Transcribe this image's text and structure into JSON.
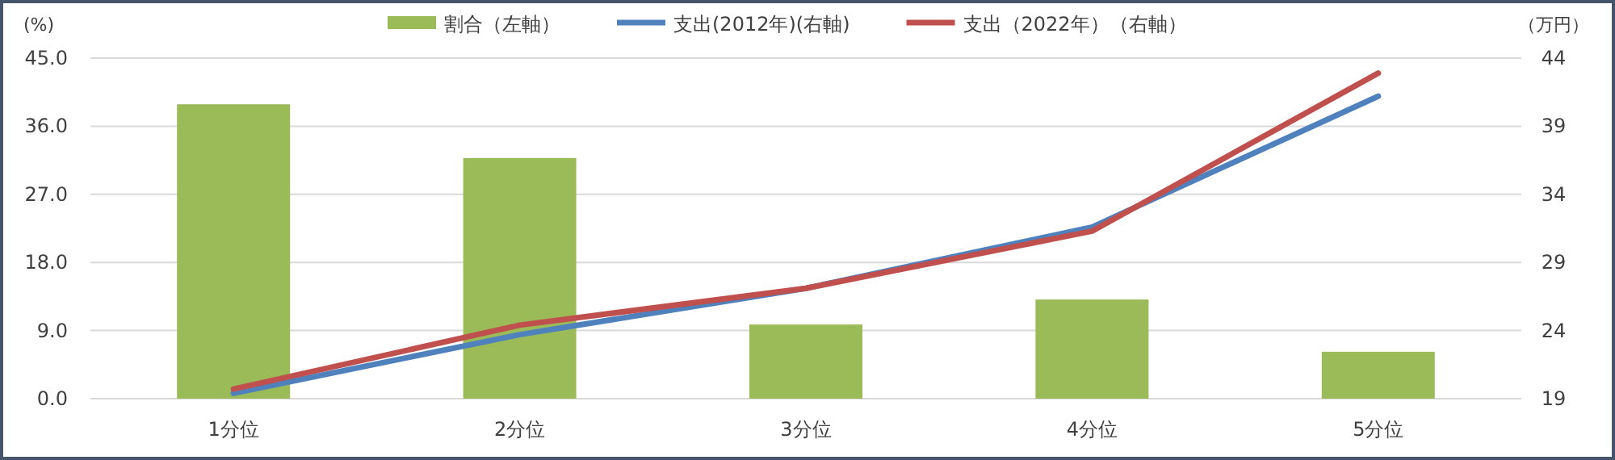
{
  "chart_data": {
    "type": "bar",
    "categories": [
      "1分位",
      "2分位",
      "3分位",
      "4分位",
      "5分位"
    ],
    "series": [
      {
        "name": "割合（左軸）",
        "color": "#9bbb59",
        "values": [
          38.9,
          31.8,
          9.8,
          13.1,
          6.2
        ]
      },
      {
        "name": "支出(2012年)(右軸)",
        "type": "line",
        "axis": "y2",
        "color": "#4f81bd",
        "values": [
          19.4,
          23.7,
          27.1,
          31.6,
          41.2
        ]
      },
      {
        "name": "支出（2022年）（右軸）",
        "type": "line",
        "axis": "y2",
        "color": "#c0504d",
        "values": [
          19.7,
          24.4,
          27.1,
          31.3,
          42.9
        ]
      }
    ],
    "ylabel": "(%)",
    "y2label": "（万円）",
    "ylim": [
      0,
      45
    ],
    "yticks": [
      {
        "value": 0,
        "label": "0.0"
      },
      {
        "value": 9,
        "label": "9.0"
      },
      {
        "value": 18,
        "label": "18.0"
      },
      {
        "value": 27,
        "label": "27.0"
      },
      {
        "value": 36,
        "label": "36.0"
      },
      {
        "value": 45,
        "label": "45.0"
      }
    ],
    "y2lim": [
      19,
      44
    ],
    "y2ticks": [
      19,
      24,
      29,
      34,
      39,
      44
    ],
    "grid": "y",
    "legend": "top",
    "marker": "none",
    "line_style": "solid"
  }
}
